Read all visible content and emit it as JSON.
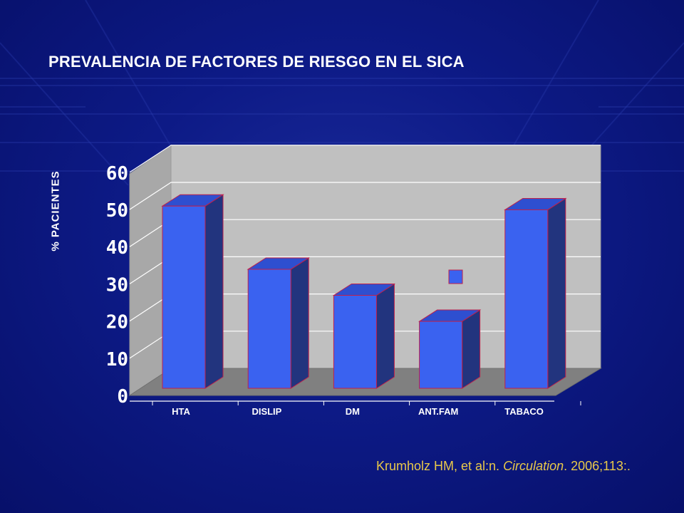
{
  "title": "PREVALENCIA DE FACTORES DE RIESGO EN EL SICA",
  "citation": {
    "before": "Krumholz HM, et al:n. ",
    "journal": "Circulation",
    "after": ". 2006;113:."
  },
  "colors": {
    "background": "#0d1a86",
    "bar_front": "#3a62f0",
    "bar_side": "#22347e",
    "bar_top": "#2e4fd0",
    "bar_outline": "#c0204a",
    "wall": "#c0c0c0",
    "floor": "#808080",
    "citation": "#e8c84a"
  },
  "chart_data": {
    "type": "bar",
    "categories": [
      "HTA",
      "DISLIP",
      "DM",
      "ANT.FAM",
      "TABACO"
    ],
    "values": [
      49,
      32,
      25,
      18,
      48
    ],
    "ylabel": "% PACIENTES",
    "xlabel": "",
    "ylim": [
      0,
      60
    ],
    "yticks": [
      "0",
      "10",
      "20",
      "30",
      "40",
      "50",
      "60"
    ],
    "grid": true,
    "style": "3d-column",
    "legend": "small square marker only"
  }
}
